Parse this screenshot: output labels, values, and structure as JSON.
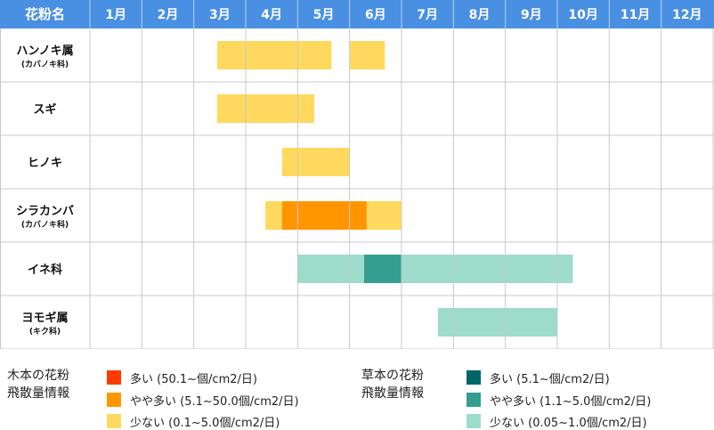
{
  "chart_data": {
    "type": "gantt",
    "header_first_col": "花粉名",
    "months": [
      "1月",
      "2月",
      "3月",
      "4月",
      "5月",
      "6月",
      "7月",
      "8月",
      "9月",
      "10月",
      "11月",
      "12月"
    ],
    "rows": [
      {
        "name": "ハンノキ属",
        "sub": "(カバノキ科)",
        "bars": [
          {
            "start": 3.45,
            "end": 5.65,
            "level": "tree_low"
          },
          {
            "start": 6.0,
            "end": 6.68,
            "level": "tree_low"
          }
        ]
      },
      {
        "name": "スギ",
        "sub": "",
        "bars": [
          {
            "start": 3.45,
            "end": 5.32,
            "level": "tree_low"
          }
        ]
      },
      {
        "name": "ヒノキ",
        "sub": "",
        "bars": [
          {
            "start": 4.7,
            "end": 6.0,
            "level": "tree_low"
          }
        ]
      },
      {
        "name": "シラカンバ",
        "sub": "(カバノキ科)",
        "bars": [
          {
            "start": 4.38,
            "end": 4.7,
            "level": "tree_low"
          },
          {
            "start": 4.7,
            "end": 6.33,
            "level": "tree_mid"
          },
          {
            "start": 6.33,
            "end": 7.0,
            "level": "tree_low"
          }
        ]
      },
      {
        "name": "イネ科",
        "sub": "",
        "bars": [
          {
            "start": 5.0,
            "end": 6.28,
            "level": "grass_low"
          },
          {
            "start": 6.28,
            "end": 7.0,
            "level": "grass_mid"
          },
          {
            "start": 7.0,
            "end": 10.3,
            "level": "grass_low"
          }
        ]
      },
      {
        "name": "ヨモギ属",
        "sub": "(キク科)",
        "bars": [
          {
            "start": 7.7,
            "end": 10.0,
            "level": "grass_low"
          }
        ]
      }
    ]
  },
  "colors": {
    "header_bg": "#4a90e2",
    "header_text": "#ffffff",
    "grid": "#c8c8c8",
    "tree_high": "#ff3b00",
    "tree_mid": "#ff9500",
    "tree_low": "#ffd95e",
    "grass_high": "#006666",
    "grass_mid": "#339e8f",
    "grass_low": "#9ddccb"
  },
  "legend": {
    "tree": {
      "title": "木本の花粉\n飛散量情報",
      "items": [
        {
          "level": "tree_high",
          "label": "多い (50.1~個/cm2/日)"
        },
        {
          "level": "tree_mid",
          "label": "やや多い (5.1~50.0個/cm2/日)"
        },
        {
          "level": "tree_low",
          "label": "少ない (0.1~5.0個/cm2/日)"
        }
      ]
    },
    "grass": {
      "title": "草本の花粉\n飛散量情報",
      "items": [
        {
          "level": "grass_high",
          "label": "多い (5.1~個/cm2/日)"
        },
        {
          "level": "grass_mid",
          "label": "やや多い (1.1~5.0個/cm2/日)"
        },
        {
          "level": "grass_low",
          "label": "少ない (0.05~1.0個/cm2/日)"
        }
      ]
    }
  }
}
